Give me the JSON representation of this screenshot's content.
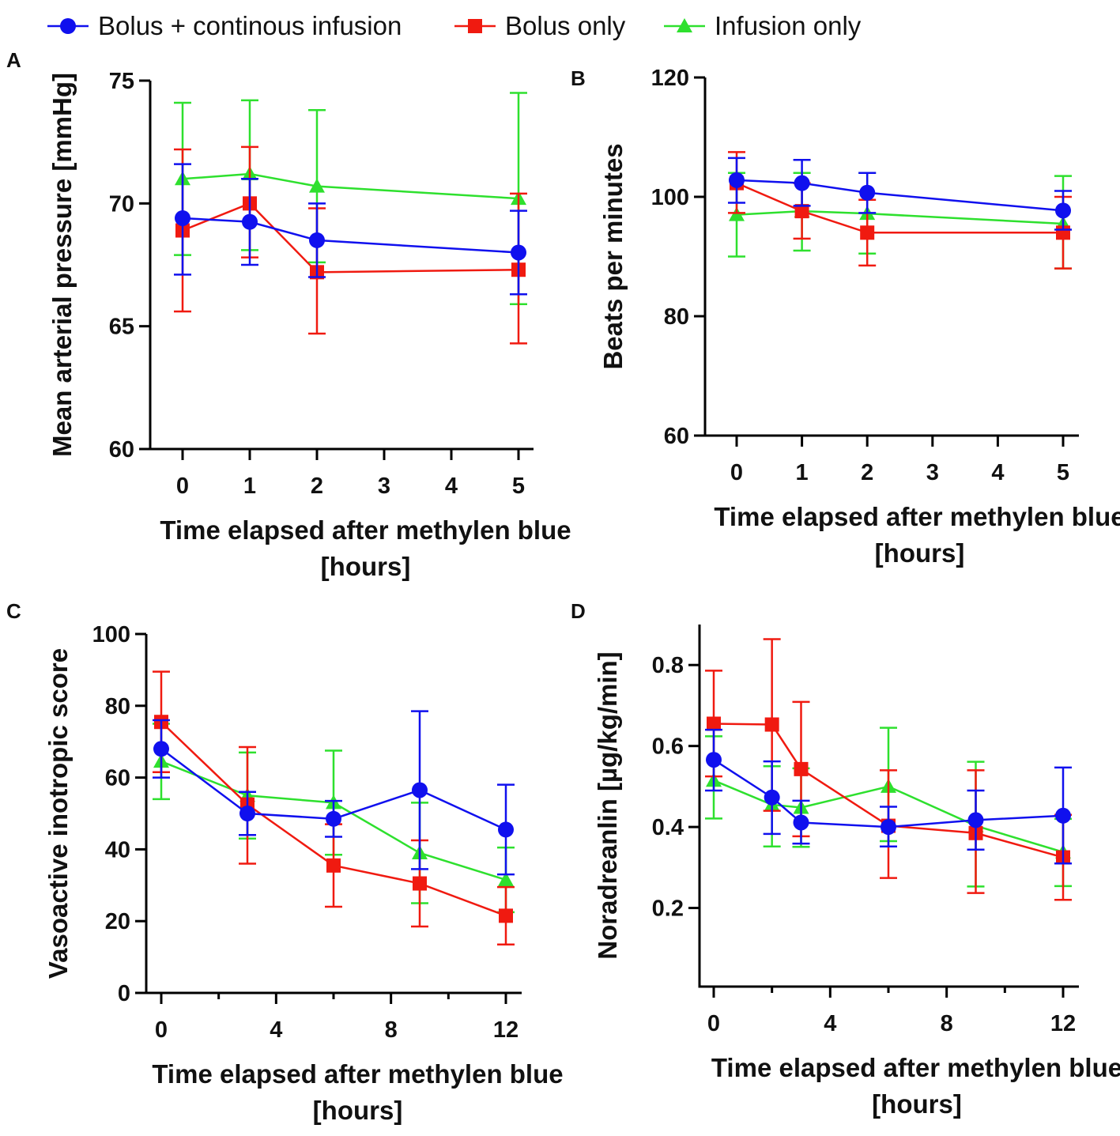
{
  "legend": [
    {
      "name": "Bolus + continous infusion",
      "color": "#1010ee",
      "marker": "circle"
    },
    {
      "name": "Bolus only",
      "color": "#f01a10",
      "marker": "square"
    },
    {
      "name": "Infusion only",
      "color": "#2ee02e",
      "marker": "triangle"
    }
  ],
  "chart_data": [
    {
      "panel": "A",
      "type": "line",
      "xlabel": "Time elapsed after methylen blue",
      "xlabel2": "[hours]",
      "ylabel": "Mean arterial pressure [mmHg]",
      "ylim": [
        60,
        75
      ],
      "yticks": [
        60,
        65,
        70,
        75
      ],
      "x_categories": [
        "0",
        "1",
        "2",
        "3",
        "4",
        "5"
      ],
      "x_mode": "categorical",
      "xticklabels": [
        "0",
        "1",
        "2",
        "3",
        "4",
        "5"
      ],
      "series": [
        {
          "name": "Bolus + continous infusion",
          "x": [
            0,
            1,
            2,
            5
          ],
          "y": [
            69.4,
            69.25,
            68.5,
            68.0
          ],
          "err": [
            [
              67.1,
              71.6
            ],
            [
              67.5,
              71.0
            ],
            [
              67.0,
              70.0
            ],
            [
              66.3,
              69.7
            ]
          ]
        },
        {
          "name": "Bolus only",
          "x": [
            0,
            1,
            2,
            5
          ],
          "y": [
            68.9,
            70.0,
            67.2,
            67.3
          ],
          "err": [
            [
              65.6,
              72.2
            ],
            [
              67.8,
              72.3
            ],
            [
              64.7,
              69.8
            ],
            [
              64.3,
              70.4
            ]
          ]
        },
        {
          "name": "Infusion only",
          "x": [
            0,
            1,
            2,
            5
          ],
          "y": [
            71.0,
            71.2,
            70.7,
            70.2
          ],
          "err": [
            [
              67.9,
              74.1
            ],
            [
              68.1,
              74.2
            ],
            [
              67.6,
              73.8
            ],
            [
              65.9,
              74.5
            ]
          ]
        }
      ]
    },
    {
      "panel": "B",
      "type": "line",
      "xlabel": "Time elapsed after methylen blue",
      "xlabel2": "[hours]",
      "ylabel": "Beats per minutes",
      "ylim": [
        60,
        120
      ],
      "yticks": [
        60,
        80,
        100,
        120
      ],
      "x_categories": [
        "0",
        "1",
        "2",
        "3",
        "4",
        "5"
      ],
      "x_mode": "categorical",
      "xticklabels": [
        "0",
        "1",
        "2",
        "3",
        "4",
        "5"
      ],
      "series": [
        {
          "name": "Bolus + continous infusion",
          "x": [
            0,
            1,
            2,
            5
          ],
          "y": [
            102.8,
            102.3,
            100.7,
            97.7
          ],
          "err": [
            [
              99.0,
              106.5
            ],
            [
              98.5,
              106.2
            ],
            [
              97.3,
              104.0
            ],
            [
              94.5,
              101.0
            ]
          ]
        },
        {
          "name": "Bolus only",
          "x": [
            0,
            1,
            2,
            5
          ],
          "y": [
            102.3,
            97.6,
            94.0,
            94.0
          ],
          "err": [
            [
              97.3,
              107.5
            ],
            [
              93.0,
              102.3
            ],
            [
              88.5,
              99.5
            ],
            [
              88.0,
              100.0
            ]
          ]
        },
        {
          "name": "Infusion only",
          "x": [
            0,
            1,
            2,
            5
          ],
          "y": [
            97.0,
            97.6,
            97.2,
            95.5
          ],
          "err": [
            [
              90.0,
              104.0
            ],
            [
              91.0,
              104.0
            ],
            [
              90.5,
              104.0
            ],
            [
              88.0,
              103.5
            ]
          ]
        }
      ]
    },
    {
      "panel": "C",
      "type": "line",
      "xlabel": "Time elapsed after methylen blue",
      "xlabel2": "[hours]",
      "ylabel": "Vasoactive inotropic score",
      "ylim": [
        0,
        100
      ],
      "yticks": [
        0,
        20,
        40,
        60,
        80,
        100
      ],
      "x_mode": "numeric",
      "xlim": [
        0,
        12
      ],
      "xticks": [
        0,
        2,
        4,
        6,
        8,
        10,
        12
      ],
      "xticklabels": [
        "0",
        "4",
        "8",
        "12"
      ],
      "series": [
        {
          "name": "Bolus + continous infusion",
          "x": [
            0,
            3,
            6,
            9,
            12
          ],
          "y": [
            68,
            50,
            48.5,
            56.5,
            45.5
          ],
          "err": [
            [
              60,
              76
            ],
            [
              44,
              56
            ],
            [
              43.5,
              53.5
            ],
            [
              34.5,
              78.5
            ],
            [
              33,
              58
            ]
          ]
        },
        {
          "name": "Bolus only",
          "x": [
            0,
            3,
            6,
            9,
            12
          ],
          "y": [
            75.5,
            52.5,
            35.5,
            30.5,
            21.5
          ],
          "err": [
            [
              61.5,
              89.5
            ],
            [
              36,
              68.5
            ],
            [
              24,
              47
            ],
            [
              18.5,
              42.5
            ],
            [
              13.5,
              29.5
            ]
          ]
        },
        {
          "name": "Infusion only",
          "x": [
            0,
            3,
            6,
            9,
            12
          ],
          "y": [
            64.5,
            55,
            53,
            39,
            31.5
          ],
          "err": [
            [
              54,
              75
            ],
            [
              43,
              67
            ],
            [
              38.5,
              67.5
            ],
            [
              25,
              53
            ],
            [
              22.5,
              40.5
            ]
          ]
        }
      ]
    },
    {
      "panel": "D",
      "type": "line",
      "xlabel": "Time elapsed after methylen blue",
      "xlabel2": "[hours]",
      "ylabel": "Noradreanlin [µg/kg/min]",
      "ylim": [
        0,
        0.9
      ],
      "yticks": [
        0.2,
        0.4,
        0.6,
        0.8
      ],
      "x_mode": "numeric",
      "xlim": [
        0,
        12
      ],
      "xticks": [
        0,
        2,
        4,
        6,
        8,
        10,
        12
      ],
      "xticklabels": [
        "0",
        "4",
        "8",
        "12"
      ],
      "series": [
        {
          "name": "Bolus + continous infusion",
          "x": [
            0,
            2,
            3,
            6,
            9,
            12
          ],
          "y": [
            0.566,
            0.473,
            0.411,
            0.4,
            0.417,
            0.428
          ],
          "err": [
            [
              0.49,
              0.64
            ],
            [
              0.383,
              0.562
            ],
            [
              0.359,
              0.465
            ],
            [
              0.352,
              0.45
            ],
            [
              0.344,
              0.49
            ],
            [
              0.31,
              0.547
            ]
          ]
        },
        {
          "name": "Bolus only",
          "x": [
            0,
            2,
            3,
            6,
            9,
            12
          ],
          "y": [
            0.655,
            0.653,
            0.543,
            0.403,
            0.385,
            0.325
          ],
          "err": [
            [
              0.525,
              0.786
            ],
            [
              0.44,
              0.864
            ],
            [
              0.377,
              0.709
            ],
            [
              0.274,
              0.54
            ],
            [
              0.237,
              0.54
            ],
            [
              0.22,
              0.43
            ]
          ]
        },
        {
          "name": "Infusion only",
          "x": [
            0,
            2,
            3,
            6,
            9,
            12
          ],
          "y": [
            0.515,
            0.455,
            0.448,
            0.5,
            0.403,
            0.338
          ],
          "err": [
            [
              0.421,
              0.624
            ],
            [
              0.352,
              0.55
            ],
            [
              0.351,
              0.545
            ],
            [
              0.365,
              0.645
            ],
            [
              0.253,
              0.561
            ],
            [
              0.254,
              0.42
            ]
          ]
        }
      ]
    }
  ]
}
